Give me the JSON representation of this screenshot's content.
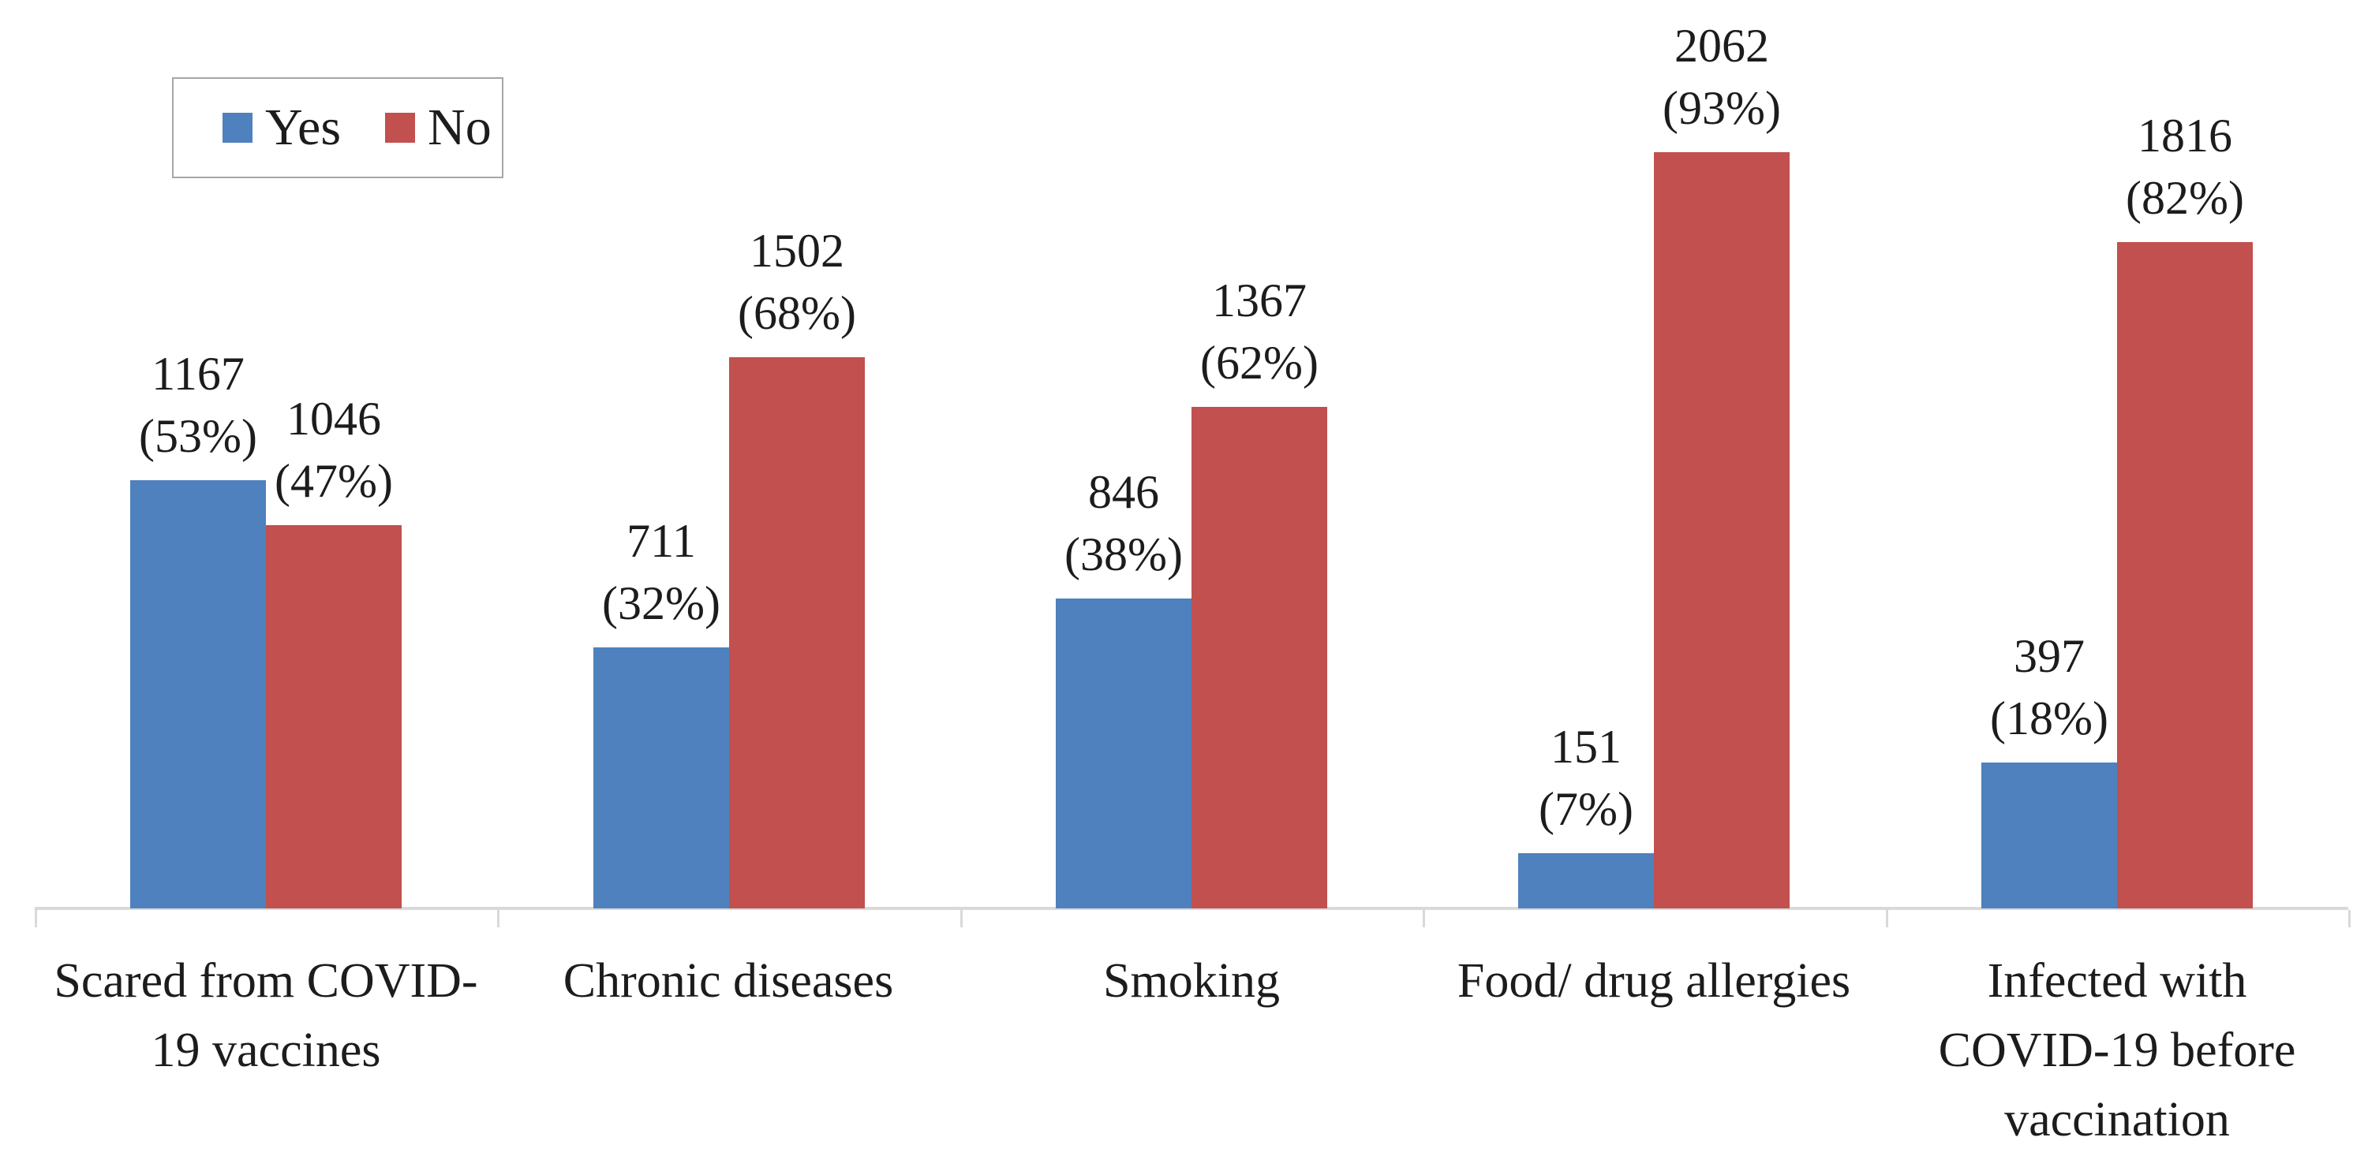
{
  "figure": {
    "background": "#ffffff",
    "text_color": "#1c1c1c"
  },
  "legend": {
    "position": "top-left",
    "border_color": "#a6a6a6",
    "items": [
      {
        "label": "Yes",
        "color": "#4e81bd"
      },
      {
        "label": "No",
        "color": "#c1504e"
      }
    ]
  },
  "chart_data": {
    "type": "bar",
    "title": "",
    "xlabel": "",
    "ylabel": "",
    "categories": [
      "Scared from COVID-19 vaccines",
      "Chronic diseases",
      "Smoking",
      "Food/ drug allergies",
      "Infected with COVID-19 before vaccination"
    ],
    "category_label_lines": [
      [
        "Scared from COVID-",
        "19 vaccines"
      ],
      [
        "Chronic diseases"
      ],
      [
        "Smoking"
      ],
      [
        "Food/ drug allergies"
      ],
      [
        "Infected with",
        "COVID-19 before",
        "vaccination"
      ]
    ],
    "series": [
      {
        "name": "Yes",
        "color": "#4e81bd",
        "values": [
          1167,
          711,
          846,
          151,
          397
        ],
        "percent_labels": [
          "(53%)",
          "(32%)",
          "(38%)",
          "(7%)",
          "(18%)"
        ]
      },
      {
        "name": "No",
        "color": "#c1504e",
        "values": [
          1046,
          1502,
          1367,
          2062,
          1816
        ],
        "percent_labels": [
          "(47%)",
          "(68%)",
          "(62%)",
          "(93%)",
          "(82%)"
        ]
      }
    ],
    "data_labels": "value with percent in parentheses above each bar",
    "legend_position": "top-left",
    "grid": false,
    "y_axis_visible": false,
    "x_axis_line_color": "#d9d9d9",
    "ylim": [
      0,
      2200
    ]
  }
}
